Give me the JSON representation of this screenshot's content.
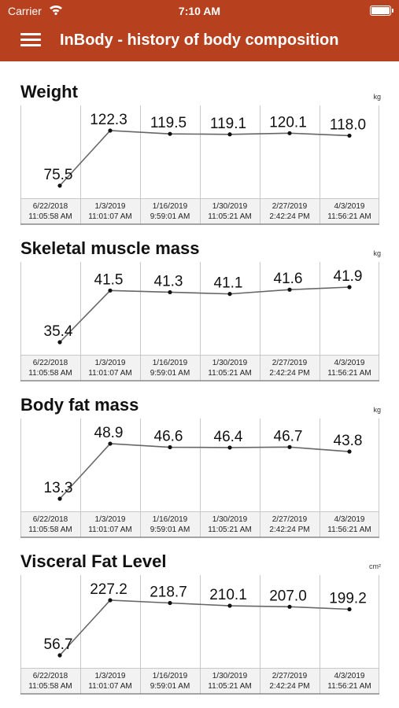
{
  "status_bar": {
    "carrier": "Carrier",
    "time": "7:10 AM"
  },
  "nav": {
    "title": "InBody - history of body composition"
  },
  "colors": {
    "header": "#b7411e",
    "grid": "#c8c8c8",
    "date_cell": "#f2f2f2",
    "line": "#666666"
  },
  "sections": [
    {
      "title": "Weight",
      "unit": "kg",
      "chart_data": {
        "type": "line",
        "x": [
          "6/22/2018 11:05:58 AM",
          "1/3/2019 11:01:07 AM",
          "1/16/2019 9:59:01 AM",
          "1/30/2019 11:05:21 AM",
          "2/27/2019 2:42:24 PM",
          "4/3/2019 11:56:21 AM"
        ],
        "ticks": [
          [
            "6/22/2018",
            "11:05:58 AM"
          ],
          [
            "1/3/2019",
            "11:01:07 AM"
          ],
          [
            "1/16/2019",
            "9:59:01 AM"
          ],
          [
            "1/30/2019",
            "11:05:21 AM"
          ],
          [
            "2/27/2019",
            "2:42:24 PM"
          ],
          [
            "4/3/2019",
            "11:56:21 AM"
          ]
        ],
        "values": [
          75.5,
          122.3,
          119.5,
          119.1,
          120.1,
          118.0
        ],
        "labels": [
          "75.5",
          "122.3",
          "119.5",
          "119.1",
          "120.1",
          "118.0"
        ]
      }
    },
    {
      "title": "Skeletal muscle mass",
      "unit": "kg",
      "chart_data": {
        "type": "line",
        "x": [
          "6/22/2018 11:05:58 AM",
          "1/3/2019 11:01:07 AM",
          "1/16/2019 9:59:01 AM",
          "1/30/2019 11:05:21 AM",
          "2/27/2019 2:42:24 PM",
          "4/3/2019 11:56:21 AM"
        ],
        "ticks": [
          [
            "6/22/2018",
            "11:05:58 AM"
          ],
          [
            "1/3/2019",
            "11:01:07 AM"
          ],
          [
            "1/16/2019",
            "9:59:01 AM"
          ],
          [
            "1/30/2019",
            "11:05:21 AM"
          ],
          [
            "2/27/2019",
            "2:42:24 PM"
          ],
          [
            "4/3/2019",
            "11:56:21 AM"
          ]
        ],
        "values": [
          35.4,
          41.5,
          41.3,
          41.1,
          41.6,
          41.9
        ],
        "labels": [
          "35.4",
          "41.5",
          "41.3",
          "41.1",
          "41.6",
          "41.9"
        ]
      }
    },
    {
      "title": "Body fat mass",
      "unit": "kg",
      "chart_data": {
        "type": "line",
        "x": [
          "6/22/2018 11:05:58 AM",
          "1/3/2019 11:01:07 AM",
          "1/16/2019 9:59:01 AM",
          "1/30/2019 11:05:21 AM",
          "2/27/2019 2:42:24 PM",
          "4/3/2019 11:56:21 AM"
        ],
        "ticks": [
          [
            "6/22/2018",
            "11:05:58 AM"
          ],
          [
            "1/3/2019",
            "11:01:07 AM"
          ],
          [
            "1/16/2019",
            "9:59:01 AM"
          ],
          [
            "1/30/2019",
            "11:05:21 AM"
          ],
          [
            "2/27/2019",
            "2:42:24 PM"
          ],
          [
            "4/3/2019",
            "11:56:21 AM"
          ]
        ],
        "values": [
          13.3,
          48.9,
          46.6,
          46.4,
          46.7,
          43.8
        ],
        "labels": [
          "13.3",
          "48.9",
          "46.6",
          "46.4",
          "46.7",
          "43.8"
        ]
      }
    },
    {
      "title": "Visceral Fat Level",
      "unit": "cm²",
      "chart_data": {
        "type": "line",
        "x": [
          "6/22/2018 11:05:58 AM",
          "1/3/2019 11:01:07 AM",
          "1/16/2019 9:59:01 AM",
          "1/30/2019 11:05:21 AM",
          "2/27/2019 2:42:24 PM",
          "4/3/2019 11:56:21 AM"
        ],
        "ticks": [
          [
            "6/22/2018",
            "11:05:58 AM"
          ],
          [
            "1/3/2019",
            "11:01:07 AM"
          ],
          [
            "1/16/2019",
            "9:59:01 AM"
          ],
          [
            "1/30/2019",
            "11:05:21 AM"
          ],
          [
            "2/27/2019",
            "2:42:24 PM"
          ],
          [
            "4/3/2019",
            "11:56:21 AM"
          ]
        ],
        "values": [
          56.7,
          227.2,
          218.7,
          210.1,
          207.0,
          199.2
        ],
        "labels": [
          "56.7",
          "227.2",
          "218.7",
          "210.1",
          "207.0",
          "199.2"
        ]
      }
    }
  ]
}
